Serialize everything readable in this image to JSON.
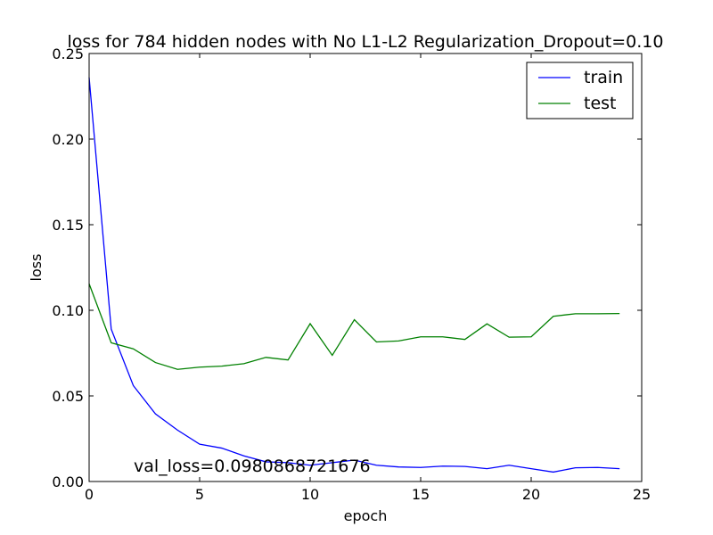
{
  "chart_data": {
    "type": "line",
    "title": "loss for 784 hidden nodes with No L1-L2 Regularization_Dropout=0.10",
    "xlabel": "epoch",
    "ylabel": "loss",
    "xlim": [
      0,
      25
    ],
    "ylim": [
      0.0,
      0.25
    ],
    "xticks": [
      0,
      5,
      10,
      15,
      20,
      25
    ],
    "xtick_labels": [
      "0",
      "5",
      "10",
      "15",
      "20",
      "25"
    ],
    "yticks": [
      0.0,
      0.05,
      0.1,
      0.15,
      0.2,
      0.25
    ],
    "ytick_labels": [
      "0.00",
      "0.05",
      "0.10",
      "0.15",
      "0.20",
      "0.25"
    ],
    "grid": false,
    "legend_position": "top-right",
    "annotation": "val_loss=0.0980868721676",
    "series": [
      {
        "name": "train",
        "color": "#0000ff",
        "x": [
          0,
          1,
          2,
          3,
          4,
          5,
          6,
          7,
          8,
          9,
          10,
          11,
          12,
          13,
          14,
          15,
          16,
          17,
          18,
          19,
          20,
          21,
          22,
          23,
          24
        ],
        "values": [
          0.236,
          0.089,
          0.056,
          0.0395,
          0.03,
          0.0218,
          0.0195,
          0.015,
          0.0115,
          0.011,
          0.0095,
          0.011,
          0.0125,
          0.0095,
          0.0085,
          0.0082,
          0.009,
          0.0088,
          0.0075,
          0.0095,
          0.0075,
          0.0055,
          0.008,
          0.0082,
          0.0075
        ]
      },
      {
        "name": "test",
        "color": "#008000",
        "x": [
          0,
          1,
          2,
          3,
          4,
          5,
          6,
          7,
          8,
          9,
          10,
          11,
          12,
          13,
          14,
          15,
          16,
          17,
          18,
          19,
          20,
          21,
          22,
          23,
          24
        ],
        "values": [
          0.1155,
          0.081,
          0.0775,
          0.0695,
          0.0655,
          0.0668,
          0.0674,
          0.0688,
          0.0725,
          0.071,
          0.0922,
          0.0737,
          0.0945,
          0.0815,
          0.0821,
          0.0845,
          0.0845,
          0.083,
          0.0921,
          0.0843,
          0.0845,
          0.0965,
          0.098,
          0.098,
          0.0981
        ]
      }
    ]
  }
}
